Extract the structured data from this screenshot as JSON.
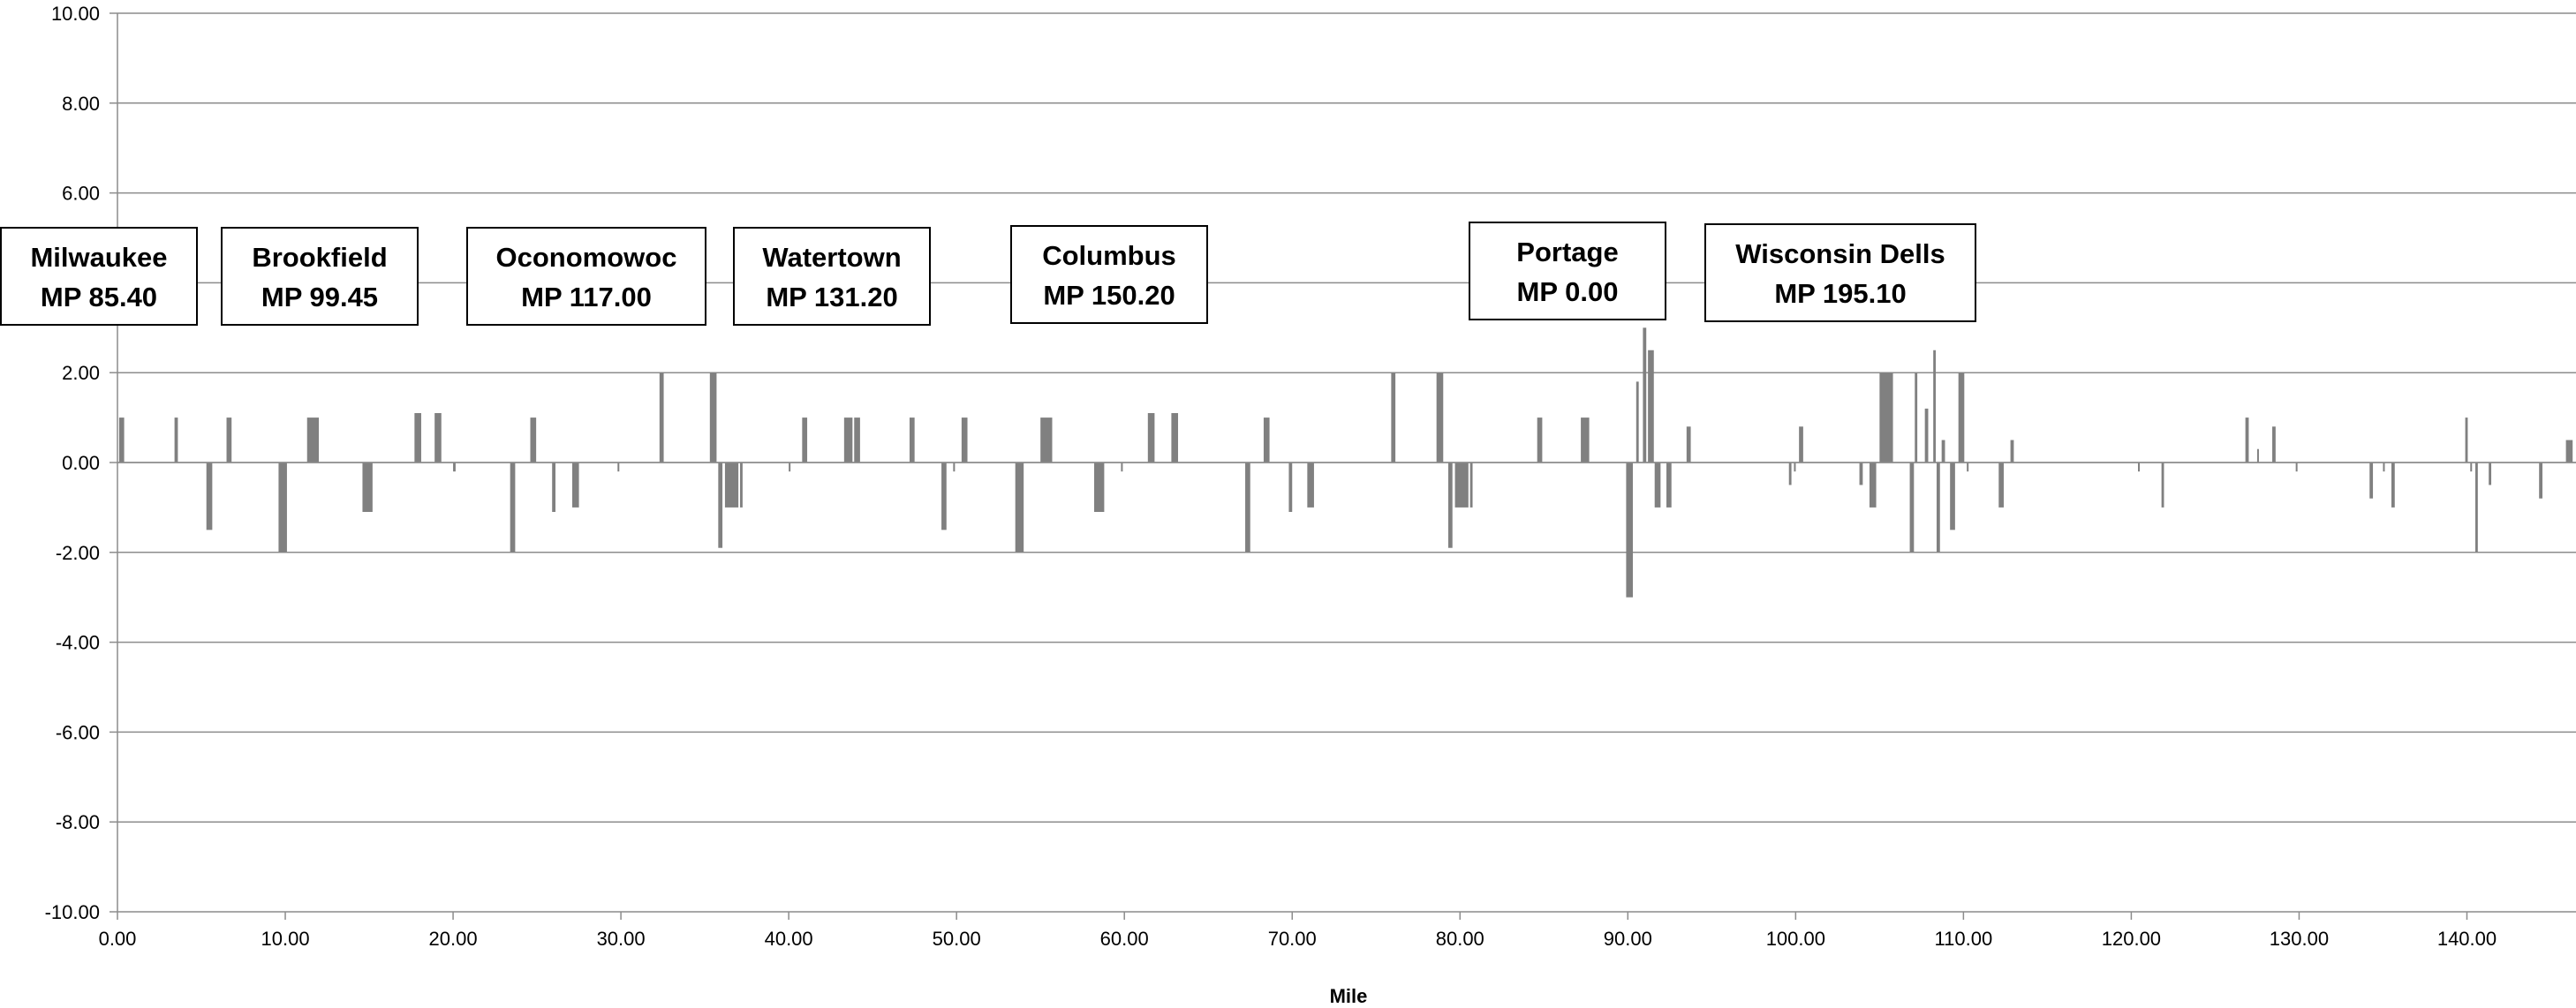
{
  "chart_data": {
    "type": "bar",
    "title": "",
    "xlabel": "Mile",
    "ylabel": "",
    "xlim": [
      0,
      146.5
    ],
    "ylim": [
      -10,
      10
    ],
    "y_ticks": [
      "10.00",
      "8.00",
      "6.00",
      "4.00",
      "2.00",
      "0.00",
      "-2.00",
      "-4.00",
      "-6.00",
      "-8.00",
      "-10.00"
    ],
    "x_ticks": [
      "0.00",
      "10.00",
      "20.00",
      "30.00",
      "40.00",
      "50.00",
      "60.00",
      "70.00",
      "80.00",
      "90.00",
      "100.00",
      "110.00",
      "120.00",
      "130.00",
      "140.00"
    ],
    "grid": "horizontal",
    "bar_color": "#808080",
    "bars": [
      {
        "x": 0.1,
        "w": 0.3,
        "y": 1.0
      },
      {
        "x": 3.4,
        "w": 0.2,
        "y": 1.0
      },
      {
        "x": 5.3,
        "w": 0.35,
        "y": -1.5
      },
      {
        "x": 6.5,
        "w": 0.3,
        "y": 1.0
      },
      {
        "x": 9.6,
        "w": 0.5,
        "y": -2.0
      },
      {
        "x": 11.3,
        "w": 0.7,
        "y": 1.0
      },
      {
        "x": 14.6,
        "w": 0.6,
        "y": -1.1
      },
      {
        "x": 17.7,
        "w": 0.4,
        "y": 1.1
      },
      {
        "x": 18.9,
        "w": 0.4,
        "y": 1.1
      },
      {
        "x": 20.0,
        "w": 0.15,
        "y": -0.2
      },
      {
        "x": 23.4,
        "w": 0.3,
        "y": -2.0
      },
      {
        "x": 24.6,
        "w": 0.35,
        "y": 1.0
      },
      {
        "x": 25.9,
        "w": 0.2,
        "y": -1.1
      },
      {
        "x": 27.1,
        "w": 0.4,
        "y": -1.0
      },
      {
        "x": 29.8,
        "w": 0.1,
        "y": -0.2
      },
      {
        "x": 32.3,
        "w": 0.25,
        "y": 2.0
      },
      {
        "x": 35.3,
        "w": 0.4,
        "y": 2.0
      },
      {
        "x": 35.8,
        "w": 0.25,
        "y": -1.9
      },
      {
        "x": 36.2,
        "w": 0.8,
        "y": -1.0
      },
      {
        "x": 37.1,
        "w": 0.15,
        "y": -1.0
      },
      {
        "x": 40.0,
        "w": 0.1,
        "y": -0.2
      },
      {
        "x": 40.8,
        "w": 0.3,
        "y": 1.0
      },
      {
        "x": 43.3,
        "w": 0.5,
        "y": 1.0
      },
      {
        "x": 43.9,
        "w": 0.35,
        "y": 1.0
      },
      {
        "x": 47.2,
        "w": 0.3,
        "y": 1.0
      },
      {
        "x": 49.1,
        "w": 0.3,
        "y": -1.5
      },
      {
        "x": 49.8,
        "w": 0.1,
        "y": -0.2
      },
      {
        "x": 50.3,
        "w": 0.35,
        "y": 1.0
      },
      {
        "x": 53.5,
        "w": 0.5,
        "y": -2.0
      },
      {
        "x": 55.0,
        "w": 0.7,
        "y": 1.0
      },
      {
        "x": 58.2,
        "w": 0.6,
        "y": -1.1
      },
      {
        "x": 59.8,
        "w": 0.1,
        "y": -0.2
      },
      {
        "x": 61.4,
        "w": 0.4,
        "y": 1.1
      },
      {
        "x": 62.8,
        "w": 0.4,
        "y": 1.1
      },
      {
        "x": 67.2,
        "w": 0.3,
        "y": -2.0
      },
      {
        "x": 68.3,
        "w": 0.35,
        "y": 1.0
      },
      {
        "x": 69.8,
        "w": 0.2,
        "y": -1.1
      },
      {
        "x": 70.9,
        "w": 0.4,
        "y": -1.0
      },
      {
        "x": 75.9,
        "w": 0.25,
        "y": 2.0
      },
      {
        "x": 78.6,
        "w": 0.4,
        "y": 2.0
      },
      {
        "x": 79.3,
        "w": 0.25,
        "y": -1.9
      },
      {
        "x": 79.7,
        "w": 0.8,
        "y": -1.0
      },
      {
        "x": 80.6,
        "w": 0.15,
        "y": -1.0
      },
      {
        "x": 84.6,
        "w": 0.3,
        "y": 1.0
      },
      {
        "x": 87.2,
        "w": 0.5,
        "y": 1.0
      },
      {
        "x": 89.9,
        "w": 0.4,
        "y": -3.0
      },
      {
        "x": 90.5,
        "w": 0.15,
        "y": 1.8
      },
      {
        "x": 90.9,
        "w": 0.2,
        "y": 3.0
      },
      {
        "x": 91.2,
        "w": 0.35,
        "y": 2.5
      },
      {
        "x": 91.6,
        "w": 0.35,
        "y": -1.0
      },
      {
        "x": 92.3,
        "w": 0.3,
        "y": -1.0
      },
      {
        "x": 93.5,
        "w": 0.25,
        "y": 0.8
      },
      {
        "x": 99.6,
        "w": 0.15,
        "y": -0.5
      },
      {
        "x": 99.9,
        "w": 0.1,
        "y": -0.2
      },
      {
        "x": 100.2,
        "w": 0.25,
        "y": 0.8
      },
      {
        "x": 103.8,
        "w": 0.2,
        "y": -0.5
      },
      {
        "x": 104.4,
        "w": 0.4,
        "y": -1.0
      },
      {
        "x": 105.0,
        "w": 0.8,
        "y": 2.0
      },
      {
        "x": 106.8,
        "w": 0.25,
        "y": -2.0
      },
      {
        "x": 107.1,
        "w": 0.15,
        "y": 2.0
      },
      {
        "x": 107.7,
        "w": 0.2,
        "y": 1.2
      },
      {
        "x": 108.2,
        "w": 0.15,
        "y": 2.5
      },
      {
        "x": 108.4,
        "w": 0.2,
        "y": -2.0
      },
      {
        "x": 108.7,
        "w": 0.2,
        "y": 0.5
      },
      {
        "x": 109.2,
        "w": 0.3,
        "y": -1.5
      },
      {
        "x": 109.7,
        "w": 0.35,
        "y": 2.0
      },
      {
        "x": 110.2,
        "w": 0.1,
        "y": -0.2
      },
      {
        "x": 112.1,
        "w": 0.3,
        "y": -1.0
      },
      {
        "x": 112.8,
        "w": 0.2,
        "y": 0.5
      },
      {
        "x": 120.4,
        "w": 0.1,
        "y": -0.2
      },
      {
        "x": 121.8,
        "w": 0.15,
        "y": -1.0
      },
      {
        "x": 126.8,
        "w": 0.2,
        "y": 1.0
      },
      {
        "x": 127.5,
        "w": 0.1,
        "y": 0.3
      },
      {
        "x": 128.4,
        "w": 0.2,
        "y": 0.8
      },
      {
        "x": 129.8,
        "w": 0.1,
        "y": -0.2
      },
      {
        "x": 134.2,
        "w": 0.2,
        "y": -0.8
      },
      {
        "x": 135.0,
        "w": 0.1,
        "y": -0.2
      },
      {
        "x": 135.5,
        "w": 0.2,
        "y": -1.0
      },
      {
        "x": 139.9,
        "w": 0.15,
        "y": 1.0
      },
      {
        "x": 140.2,
        "w": 0.1,
        "y": -0.2
      },
      {
        "x": 140.5,
        "w": 0.15,
        "y": -2.0
      },
      {
        "x": 141.3,
        "w": 0.15,
        "y": -0.5
      },
      {
        "x": 144.3,
        "w": 0.2,
        "y": -0.8
      },
      {
        "x": 145.9,
        "w": 0.4,
        "y": 0.5
      }
    ],
    "annotations": [
      {
        "line1": "Milwaukee",
        "line2": "MP 85.40"
      },
      {
        "line1": "Brookfield",
        "line2": "MP 99.45"
      },
      {
        "line1": "Oconomowoc",
        "line2": "MP 117.00"
      },
      {
        "line1": "Watertown",
        "line2": "MP 131.20"
      },
      {
        "line1": "Columbus",
        "line2": "MP 150.20"
      },
      {
        "line1": "Portage",
        "line2": "MP 0.00"
      },
      {
        "line1": "Wisconsin Dells",
        "line2": "MP 195.10"
      }
    ]
  }
}
